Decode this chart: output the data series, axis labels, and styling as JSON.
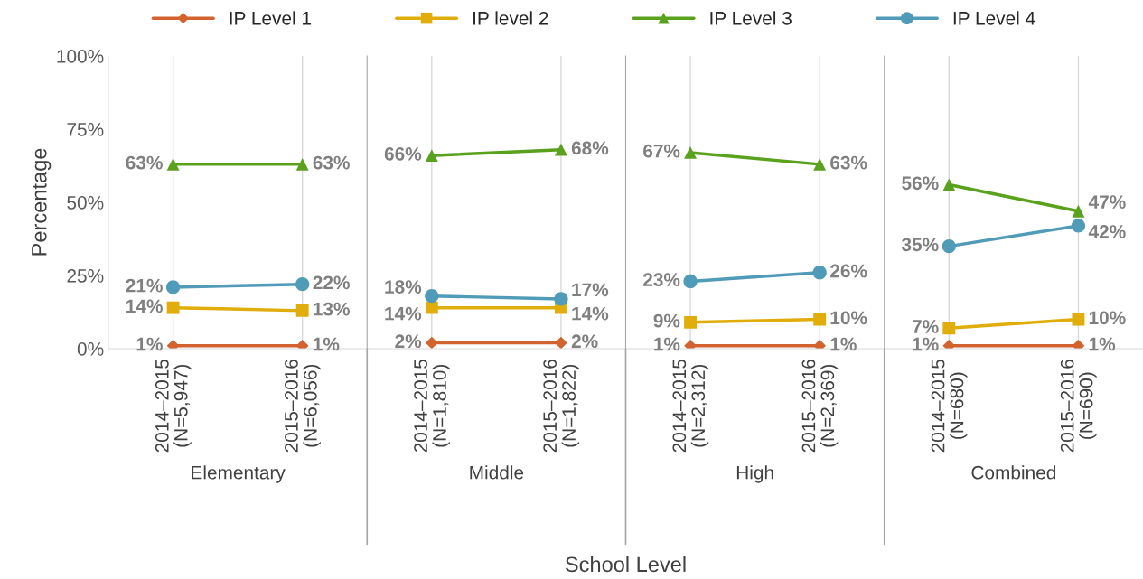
{
  "chart_data": [
    {
      "type": "line",
      "xlabel": "Elementary",
      "ylabel": "Percentage",
      "categories": [
        "2014–2015\n(N=5,947)",
        "2015–2016\n(N=6,056)"
      ],
      "ylim": [
        0,
        100
      ],
      "yticks": [
        {
          "value": 0,
          "label": "0%"
        },
        {
          "value": 25,
          "label": "25%"
        },
        {
          "value": 50,
          "label": "50%"
        },
        {
          "value": 75,
          "label": "75%"
        },
        {
          "value": 100,
          "label": "100%"
        }
      ],
      "grid": "x",
      "legend": "top",
      "annotations": [
        "School Level"
      ],
      "series": [
        {
          "name": "IP Level 1",
          "color": "#d2622e",
          "marker": "diamond",
          "values": [
            1,
            1
          ],
          "value_labels": [
            "1%",
            "1%"
          ]
        },
        {
          "name": "IP level 2",
          "color": "#e0ad0b",
          "marker": "square",
          "values": [
            14,
            13
          ],
          "value_labels": [
            "14%",
            "13%"
          ]
        },
        {
          "name": "IP Level 3",
          "color": "#5aa11d",
          "marker": "triangle",
          "values": [
            63,
            63
          ],
          "value_labels": [
            "63%",
            "63%"
          ]
        },
        {
          "name": "IP Level 4",
          "color": "#4f9bb8",
          "marker": "circle",
          "values": [
            21,
            22
          ],
          "value_labels": [
            "21%",
            "22%"
          ]
        }
      ]
    },
    {
      "type": "line",
      "xlabel": "Middle",
      "categories": [
        "2014–2015\n(N=1,810)",
        "2015–2016\n(N=1,822)"
      ],
      "ylim": [
        0,
        100
      ],
      "tick_labels": "x",
      "grid": "x",
      "series": [
        {
          "color": "#d2622e",
          "marker": "diamond",
          "values": [
            2,
            2
          ],
          "value_labels": [
            "2%",
            "2%"
          ]
        },
        {
          "color": "#e0ad0b",
          "marker": "square",
          "values": [
            14,
            14
          ],
          "value_labels": [
            "14%",
            "14%"
          ]
        },
        {
          "color": "#5aa11d",
          "marker": "triangle",
          "values": [
            66,
            68
          ],
          "value_labels": [
            "66%",
            "68%"
          ]
        },
        {
          "color": "#4f9bb8",
          "marker": "circle",
          "values": [
            18,
            17
          ],
          "value_labels": [
            "18%",
            "17%"
          ]
        }
      ]
    },
    {
      "type": "line",
      "xlabel": "High",
      "categories": [
        "2014–2015\n(N=2,312)",
        "2015–2016\n(N=2,369)"
      ],
      "ylim": [
        0,
        100
      ],
      "tick_labels": "x",
      "grid": "x",
      "series": [
        {
          "color": "#d2622e",
          "marker": "diamond",
          "values": [
            1,
            1
          ],
          "value_labels": [
            "1%",
            "1%"
          ]
        },
        {
          "color": "#e0ad0b",
          "marker": "square",
          "values": [
            9,
            10
          ],
          "value_labels": [
            "9%",
            "10%"
          ]
        },
        {
          "color": "#5aa11d",
          "marker": "triangle",
          "values": [
            67,
            63
          ],
          "value_labels": [
            "67%",
            "63%"
          ]
        },
        {
          "color": "#4f9bb8",
          "marker": "circle",
          "values": [
            23,
            26
          ],
          "value_labels": [
            "23%",
            "26%"
          ]
        }
      ]
    },
    {
      "type": "line",
      "xlabel": "Combined",
      "categories": [
        "2014–2015\n(N=680)",
        "2015–2016\n(N=690)"
      ],
      "ylim": [
        0,
        100
      ],
      "tick_labels": "x",
      "grid": "x",
      "series": [
        {
          "color": "#d2622e",
          "marker": "diamond",
          "values": [
            1,
            1
          ],
          "value_labels": [
            "1%",
            "1%"
          ]
        },
        {
          "color": "#e0ad0b",
          "marker": "square",
          "values": [
            7,
            10
          ],
          "value_labels": [
            "7%",
            "10%"
          ]
        },
        {
          "color": "#5aa11d",
          "marker": "triangle",
          "values": [
            56,
            47
          ],
          "value_labels": [
            "56%",
            "47%"
          ]
        },
        {
          "color": "#4f9bb8",
          "marker": "circle",
          "values": [
            35,
            42
          ],
          "value_labels": [
            "35%",
            "42%"
          ]
        }
      ]
    }
  ]
}
